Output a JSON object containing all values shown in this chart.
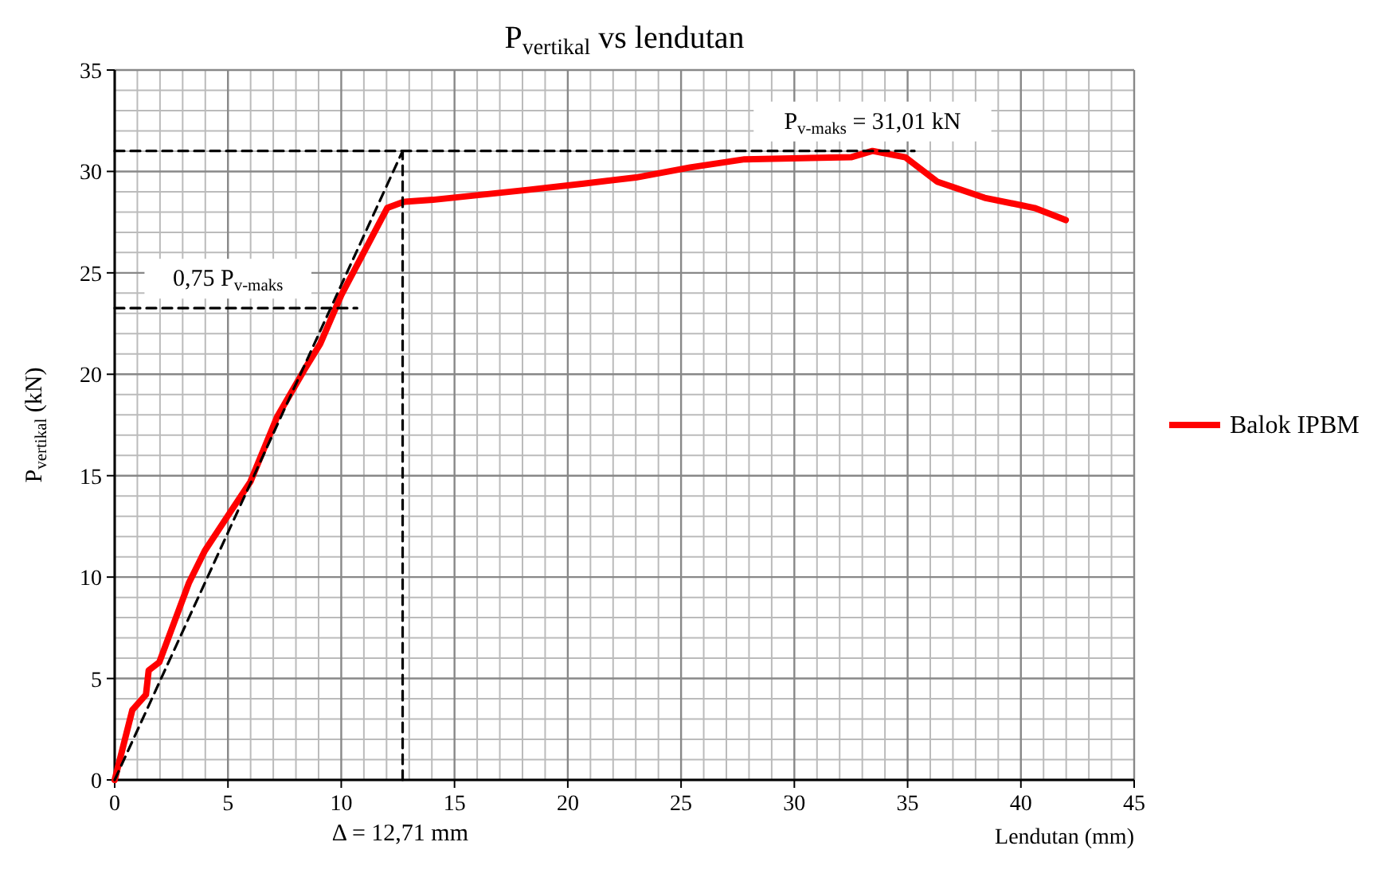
{
  "chart_data": {
    "type": "line",
    "title": "P$_{vertikal}$ vs lendutan",
    "xlabel": "Lendutan (mm)",
    "ylabel": "P$_{vertikal}$ (kN)",
    "xlim": [
      0,
      45
    ],
    "xticks": [
      0,
      5,
      10,
      15,
      20,
      25,
      30,
      35,
      40,
      45
    ],
    "ylim": [
      0,
      35
    ],
    "yticks": [
      0,
      5,
      10,
      15,
      20,
      25,
      30,
      35
    ],
    "grid": true,
    "legend": "right",
    "marker": "none",
    "line_style": "solid",
    "series": [
      {
        "name": "Balok IPBM",
        "color": "#ff0000",
        "x": [
          0,
          0.78,
          1.38,
          1.5,
          1.97,
          3.27,
          3.98,
          5.04,
          5.99,
          7.17,
          8.36,
          9.07,
          10.0,
          12.03,
          12.74,
          14.04,
          18.3,
          20.7,
          23.0,
          25.4,
          27.8,
          32.5,
          33.45,
          34.9,
          36.3,
          38.4,
          40.6,
          41.98
        ],
        "values": [
          0,
          3.45,
          4.2,
          5.4,
          5.8,
          9.7,
          11.3,
          13.1,
          14.7,
          17.9,
          20.2,
          21.5,
          23.9,
          28.2,
          28.5,
          28.6,
          29.1,
          29.4,
          29.7,
          30.2,
          30.6,
          30.7,
          31.01,
          30.7,
          29.5,
          28.7,
          28.2,
          27.6
        ]
      },
      {
        "color": "#000000",
        "line_style": "dashed",
        "x": [
          0,
          12.71
        ],
        "values": [
          0,
          31.01
        ]
      },
      {
        "color": "#000000",
        "line_style": "dashed",
        "x": [
          0,
          35.3
        ],
        "values": [
          31.01,
          31.01
        ]
      },
      {
        "color": "#000000",
        "line_style": "dashed",
        "x": [
          12.71,
          12.71
        ],
        "values": [
          0,
          31.01
        ]
      },
      {
        "color": "#000000",
        "line_style": "dashed",
        "x": [
          0,
          10.7
        ],
        "values": [
          23.26,
          23.26
        ]
      }
    ],
    "annotations": [
      {
        "text": "P$_{v-maks}$ = 31,01 kN",
        "x": 33.45,
        "y": 31.01
      },
      {
        "text": "0,75 P$_{v-maks}$",
        "x": 5,
        "y": 23.26
      },
      "Δ = 12,71 mm"
    ]
  }
}
